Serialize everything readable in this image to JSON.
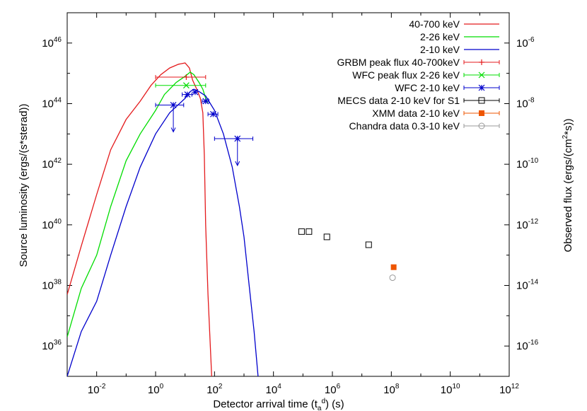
{
  "chart_data": {
    "type": "line",
    "xlabel_main": "Detector arrival time (t",
    "xlabel_sub": "a",
    "xlabel_sup": "d",
    "xlabel_tail": ") (s)",
    "ylabel": "Source luminosity (ergs/(s*sterad))",
    "y2label_main": "Observed flux (ergs/(cm",
    "y2label_sup": "2",
    "y2label_tail": "*s))",
    "x_log": true,
    "y_log": true,
    "xlim": [
      0.001,
      1000000000000.0
    ],
    "ylim": [
      1e+35,
      1e+47
    ],
    "y2lim": [
      1e-17,
      1e-05
    ],
    "x_ticks": [
      {
        "exp": -2,
        "base": "10",
        "sup": "-2"
      },
      {
        "exp": 0,
        "base": "10",
        "sup": "0"
      },
      {
        "exp": 2,
        "base": "10",
        "sup": "2"
      },
      {
        "exp": 4,
        "base": "10",
        "sup": "4"
      },
      {
        "exp": 6,
        "base": "10",
        "sup": "6"
      },
      {
        "exp": 8,
        "base": "10",
        "sup": "8"
      },
      {
        "exp": 10,
        "base": "10",
        "sup": "10"
      },
      {
        "exp": 12,
        "base": "10",
        "sup": "12"
      }
    ],
    "y_ticks": [
      {
        "exp": 36,
        "base": "10",
        "sup": "36"
      },
      {
        "exp": 38,
        "base": "10",
        "sup": "38"
      },
      {
        "exp": 40,
        "base": "10",
        "sup": "40"
      },
      {
        "exp": 42,
        "base": "10",
        "sup": "42"
      },
      {
        "exp": 44,
        "base": "10",
        "sup": "44"
      },
      {
        "exp": 46,
        "base": "10",
        "sup": "46"
      }
    ],
    "y2_ticks": [
      {
        "exp": -16,
        "base": "10",
        "sup": "-16"
      },
      {
        "exp": -14,
        "base": "10",
        "sup": "-14"
      },
      {
        "exp": -12,
        "base": "10",
        "sup": "-12"
      },
      {
        "exp": -10,
        "base": "10",
        "sup": "-10"
      },
      {
        "exp": -8,
        "base": "10",
        "sup": "-8"
      },
      {
        "exp": -6,
        "base": "10",
        "sup": "-6"
      }
    ],
    "series": [
      {
        "name": "40-700 keV",
        "kind": "line",
        "color": "#e41a1c",
        "x": [
          0.001,
          0.003,
          0.01,
          0.03,
          0.1,
          0.3,
          0.7,
          1.5,
          3,
          6,
          10,
          14,
          18,
          25,
          33,
          40,
          45,
          50,
          60,
          80
        ],
        "y": [
          5e+37,
          2e+39,
          1e+41,
          3e+42,
          3e+43,
          1.2e+44,
          4e+44,
          9e+44,
          1.5e+45,
          2e+45,
          2.2e+45,
          1.5e+45,
          6e+44,
          3e+44,
          1.5e+44,
          5e+43,
          2e+42,
          1e+40,
          5e+37,
          1e+35
        ]
      },
      {
        "name": "2-26 keV",
        "kind": "line",
        "color": "#00dd00",
        "x": [
          0.001,
          0.003,
          0.01,
          0.03,
          0.1,
          0.3,
          1,
          2,
          5,
          10,
          15,
          20,
          30,
          40,
          50,
          60
        ],
        "y": [
          2e+36,
          8e+37,
          1e+39,
          4e+40,
          1.3e+42,
          1e+43,
          6e+43,
          2e+44,
          5e+44,
          8e+44,
          1.1e+45,
          9e+44,
          5e+44,
          3e+44,
          1.5e+44,
          1e+44
        ]
      },
      {
        "name": "2-10 keV",
        "kind": "line",
        "color": "#0000cc",
        "x": [
          0.001,
          0.003,
          0.01,
          0.03,
          0.1,
          0.3,
          1,
          3,
          10,
          15,
          20,
          30,
          50,
          100,
          200,
          400,
          700,
          1000,
          1500,
          2200,
          3000
        ],
        "y": [
          1e+35,
          3e+36,
          3e+37,
          1e+39,
          4e+40,
          8e+41,
          1e+43,
          5e+43,
          1.5e+44,
          2.5e+44,
          3e+44,
          2.5e+44,
          1.8e+44,
          6e+43,
          1e+43,
          8e+41,
          4e+40,
          4e+39,
          1e+38,
          3e+36,
          1e+35
        ]
      },
      {
        "name": "GRBM peak flux 40-700keV",
        "kind": "points",
        "color": "#e41a1c",
        "marker": "plus",
        "points": [
          {
            "x": 11,
            "y": 7.5e+44,
            "xlo": 1,
            "xhi": 50
          }
        ]
      },
      {
        "name": "WFC peak flux 2-26 keV",
        "kind": "points",
        "color": "#00dd00",
        "marker": "cross",
        "points": [
          {
            "x": 11,
            "y": 4e+44,
            "xlo": 1,
            "xhi": 50
          }
        ]
      },
      {
        "name": "WFC 2-10 keV",
        "kind": "points",
        "color": "#0000cc",
        "marker": "star",
        "points": [
          {
            "x": 4,
            "y": 9e+43,
            "xlo": 1,
            "xhi": 9,
            "upper": true
          },
          {
            "x": 12,
            "y": 2e+44,
            "xlo": 8,
            "xhi": 17
          },
          {
            "x": 22,
            "y": 2.4e+44
          },
          {
            "x": 50,
            "y": 1.2e+44,
            "xlo": 38,
            "xhi": 65
          },
          {
            "x": 90,
            "y": 4.5e+43,
            "xlo": 60,
            "xhi": 130
          },
          {
            "x": 600,
            "y": 7e+42,
            "xlo": 100,
            "xhi": 2000,
            "upper": true
          }
        ]
      },
      {
        "name": "MECS data 2-10 keV for S1",
        "kind": "points",
        "color": "#000000",
        "marker": "open-square",
        "points": [
          {
            "x": 90000.0,
            "y": 6e+39
          },
          {
            "x": 160000.0,
            "y": 6e+39
          },
          {
            "x": 650000.0,
            "y": 4e+39
          },
          {
            "x": 17000000.0,
            "y": 2.2e+39
          }
        ]
      },
      {
        "name": "XMM data 2-10 keV",
        "kind": "points",
        "color": "#ee5500",
        "marker": "filled-square",
        "points": [
          {
            "x": 120000000.0,
            "y": 4e+38
          }
        ]
      },
      {
        "name": "Chandra data 0.3-10 keV",
        "kind": "points",
        "color": "#999999",
        "marker": "open-circle",
        "points": [
          {
            "x": 110000000.0,
            "y": 1.8e+38
          }
        ]
      }
    ]
  }
}
